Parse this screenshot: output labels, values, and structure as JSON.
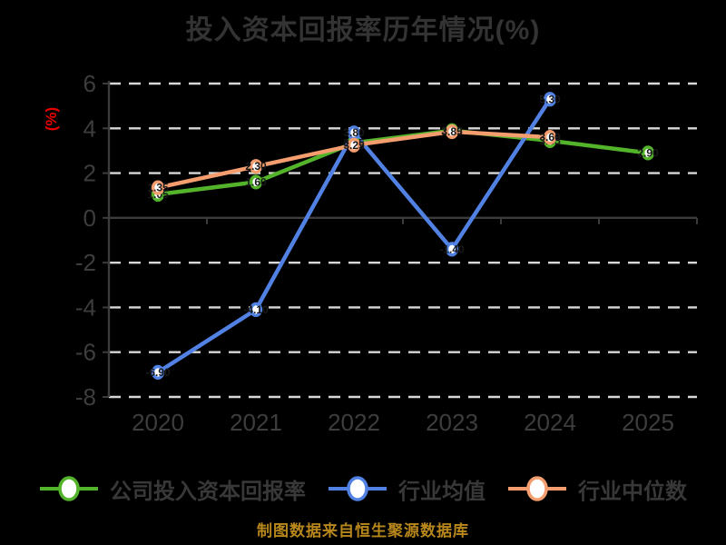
{
  "title": "投入资本回报率历年情况(%)",
  "footer": "制图数据来自恒生聚源数据库",
  "colors": {
    "background": "#000000",
    "title_text": "#333333",
    "tick_text": "#3d3d3d",
    "grid_dashed": "#d8d8d8",
    "axis_line": "#3c3c3c",
    "ylabel_red": "#e60000",
    "footer_gold": "#b8871c",
    "point_label": "#1a1a1a",
    "series_green": "#53b32b",
    "series_blue": "#5182e3",
    "series_orange": "#f49d6f",
    "marker_fill": "#ffffff"
  },
  "chart_data": {
    "type": "line",
    "title": "投入资本回报率历年情况(%)",
    "xlabel": "",
    "ylabel": "(%)",
    "x": [
      "2020",
      "2021",
      "2022",
      "2023",
      "2024",
      "2025"
    ],
    "ylim": [
      -8,
      6
    ],
    "yticks": [
      6,
      4,
      2,
      0,
      -2,
      -4,
      -6,
      -8
    ],
    "grid": "horizontal-dashed",
    "zero_line": "solid",
    "legend_position": "bottom",
    "series": [
      {
        "name": "公司投入资本回报率",
        "color": "#53b32b",
        "values": [
          1.05,
          1.6,
          3.35,
          3.9,
          3.45,
          2.9
        ]
      },
      {
        "name": "行业均值",
        "color": "#5182e3",
        "values": [
          -6.9,
          -4.1,
          3.8,
          -1.4,
          5.3,
          null
        ]
      },
      {
        "name": "行业中位数",
        "color": "#f49d6f",
        "values": [
          1.35,
          2.3,
          3.25,
          3.85,
          3.6,
          null
        ]
      }
    ]
  }
}
